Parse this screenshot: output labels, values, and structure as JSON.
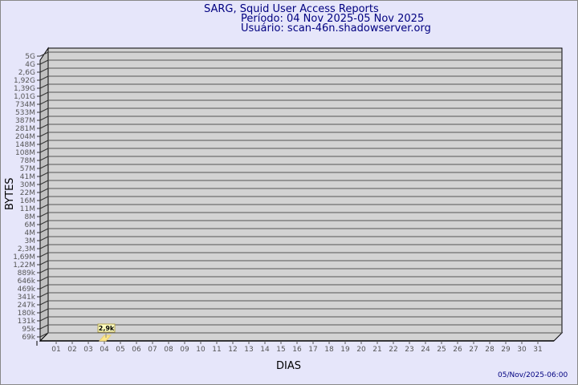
{
  "header": {
    "title": "SARG, Squid User Access Reports",
    "period": "Período: 04 Nov 2025-05 Nov 2025",
    "user": "Usuário: scan-46n.shadowserver.org"
  },
  "footer": {
    "timestamp": "05/Nov/2025-06:00"
  },
  "colors": {
    "background": "#e6e6fa",
    "plot": "#d3d3d3",
    "bar": "#ffe88a",
    "text": "#000080"
  },
  "chart_data": {
    "type": "bar",
    "xlabel": "DIAS",
    "ylabel": "BYTES",
    "y_scale": "log",
    "grid": true,
    "categories": [
      "01",
      "02",
      "03",
      "04",
      "05",
      "06",
      "07",
      "08",
      "09",
      "10",
      "11",
      "12",
      "13",
      "14",
      "15",
      "16",
      "17",
      "18",
      "19",
      "20",
      "21",
      "22",
      "23",
      "24",
      "25",
      "26",
      "27",
      "28",
      "29",
      "30",
      "31"
    ],
    "y_tick_labels": [
      "5G",
      "4G",
      "2,6G",
      "1,92G",
      "1,39G",
      "1,01G",
      "734M",
      "533M",
      "387M",
      "281M",
      "204M",
      "148M",
      "108M",
      "78M",
      "57M",
      "41M",
      "30M",
      "22M",
      "16M",
      "11M",
      "8M",
      "6M",
      "4M",
      "3M",
      "2,3M",
      "1,69M",
      "1,22M",
      "889k",
      "646k",
      "469k",
      "341k",
      "247k",
      "180k",
      "131k",
      "95k",
      "69k"
    ],
    "series": [
      {
        "points": [
          {
            "x": "04",
            "value": 2900,
            "label": "2,9k"
          }
        ]
      }
    ]
  }
}
